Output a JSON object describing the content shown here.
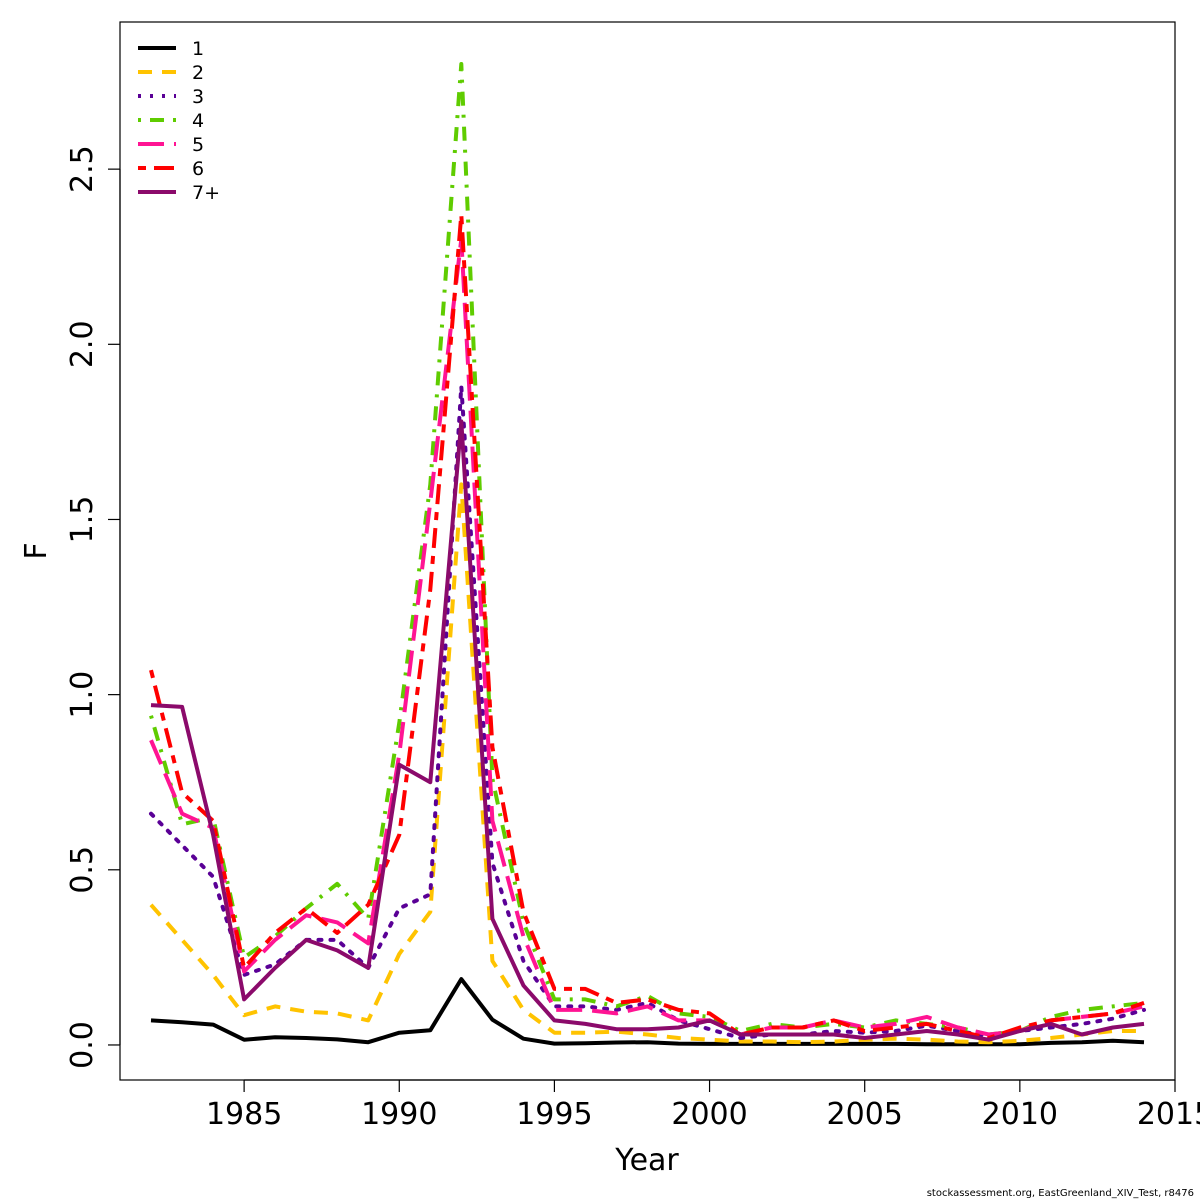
{
  "chart_data": {
    "type": "line",
    "title": "",
    "xlabel": "Year",
    "ylabel": "F",
    "xlim": [
      1981,
      2015
    ],
    "ylim": [
      -0.1,
      2.92
    ],
    "x_ticks": [
      1985,
      1990,
      1995,
      2000,
      2005,
      2010,
      2015
    ],
    "x_tick_labels": [
      "1985",
      "1990",
      "1995",
      "2000",
      "2005",
      "2010",
      "2015"
    ],
    "y_ticks": [
      0.0,
      0.5,
      1.0,
      1.5,
      2.0,
      2.5
    ],
    "y_tick_labels": [
      "0.0",
      "0.5",
      "1.0",
      "1.5",
      "2.0",
      "2.5"
    ],
    "legend_position": "top-left",
    "x": [
      1982,
      1983,
      1984,
      1985,
      1986,
      1987,
      1988,
      1989,
      1990,
      1991,
      1992,
      1993,
      1994,
      1995,
      1996,
      1997,
      1998,
      1999,
      2000,
      2001,
      2002,
      2003,
      2004,
      2005,
      2006,
      2007,
      2008,
      2009,
      2010,
      2011,
      2012,
      2013,
      2014
    ],
    "series": [
      {
        "name": "1",
        "color": "#000000",
        "dash": "solid",
        "values": [
          0.07,
          0.065,
          0.058,
          0.015,
          0.022,
          0.02,
          0.016,
          0.008,
          0.035,
          0.042,
          0.188,
          0.072,
          0.018,
          0.004,
          0.005,
          0.007,
          0.008,
          0.004,
          0.003,
          0.003,
          0.003,
          0.003,
          0.003,
          0.003,
          0.003,
          0.002,
          0.002,
          0.002,
          0.002,
          0.006,
          0.008,
          0.012,
          0.008
        ]
      },
      {
        "name": "2",
        "color": "#FFC300",
        "dash": "dashed",
        "values": [
          0.4,
          0.3,
          0.2,
          0.085,
          0.11,
          0.095,
          0.09,
          0.07,
          0.26,
          0.38,
          1.6,
          0.24,
          0.1,
          0.035,
          0.035,
          0.038,
          0.03,
          0.02,
          0.015,
          0.01,
          0.01,
          0.008,
          0.01,
          0.015,
          0.018,
          0.015,
          0.01,
          0.008,
          0.012,
          0.02,
          0.03,
          0.04,
          0.04
        ]
      },
      {
        "name": "3",
        "color": "#5A0096",
        "dash": "dotted",
        "values": [
          0.66,
          0.57,
          0.48,
          0.2,
          0.23,
          0.3,
          0.3,
          0.22,
          0.39,
          0.43,
          1.88,
          0.52,
          0.24,
          0.11,
          0.11,
          0.1,
          0.12,
          0.07,
          0.045,
          0.02,
          0.03,
          0.03,
          0.04,
          0.035,
          0.04,
          0.055,
          0.04,
          0.025,
          0.04,
          0.05,
          0.06,
          0.075,
          0.1
        ]
      },
      {
        "name": "4",
        "color": "#5FCC00",
        "dash": "dotdash",
        "values": [
          0.94,
          0.63,
          0.65,
          0.25,
          0.31,
          0.39,
          0.46,
          0.36,
          0.92,
          1.6,
          2.8,
          0.76,
          0.35,
          0.13,
          0.13,
          0.11,
          0.14,
          0.09,
          0.08,
          0.04,
          0.06,
          0.05,
          0.06,
          0.05,
          0.07,
          0.06,
          0.05,
          0.03,
          0.04,
          0.08,
          0.1,
          0.11,
          0.12
        ]
      },
      {
        "name": "5",
        "color": "#FF1493",
        "dash": "longdash",
        "values": [
          0.87,
          0.66,
          0.62,
          0.21,
          0.3,
          0.37,
          0.35,
          0.29,
          0.83,
          1.55,
          2.3,
          0.64,
          0.31,
          0.1,
          0.1,
          0.09,
          0.11,
          0.07,
          0.07,
          0.03,
          0.05,
          0.05,
          0.07,
          0.05,
          0.06,
          0.08,
          0.05,
          0.03,
          0.04,
          0.07,
          0.08,
          0.09,
          0.11
        ]
      },
      {
        "name": "6",
        "color": "#FF0000",
        "dash": "twodash",
        "values": [
          1.07,
          0.72,
          0.64,
          0.22,
          0.32,
          0.39,
          0.32,
          0.4,
          0.6,
          1.3,
          2.37,
          0.85,
          0.38,
          0.16,
          0.16,
          0.12,
          0.13,
          0.1,
          0.09,
          0.03,
          0.05,
          0.05,
          0.07,
          0.04,
          0.05,
          0.06,
          0.04,
          0.02,
          0.05,
          0.07,
          0.08,
          0.09,
          0.12
        ]
      },
      {
        "name": "7+",
        "color": "#8B0A6B",
        "dash": "solid",
        "values": [
          0.97,
          0.965,
          0.6,
          0.13,
          0.22,
          0.3,
          0.27,
          0.22,
          0.8,
          0.75,
          1.78,
          0.36,
          0.17,
          0.07,
          0.06,
          0.045,
          0.045,
          0.05,
          0.07,
          0.03,
          0.03,
          0.03,
          0.03,
          0.02,
          0.03,
          0.04,
          0.03,
          0.015,
          0.04,
          0.06,
          0.03,
          0.05,
          0.06
        ]
      }
    ]
  },
  "credit": "stockassessment.org, EastGreenland_XIV_Test, r8476"
}
